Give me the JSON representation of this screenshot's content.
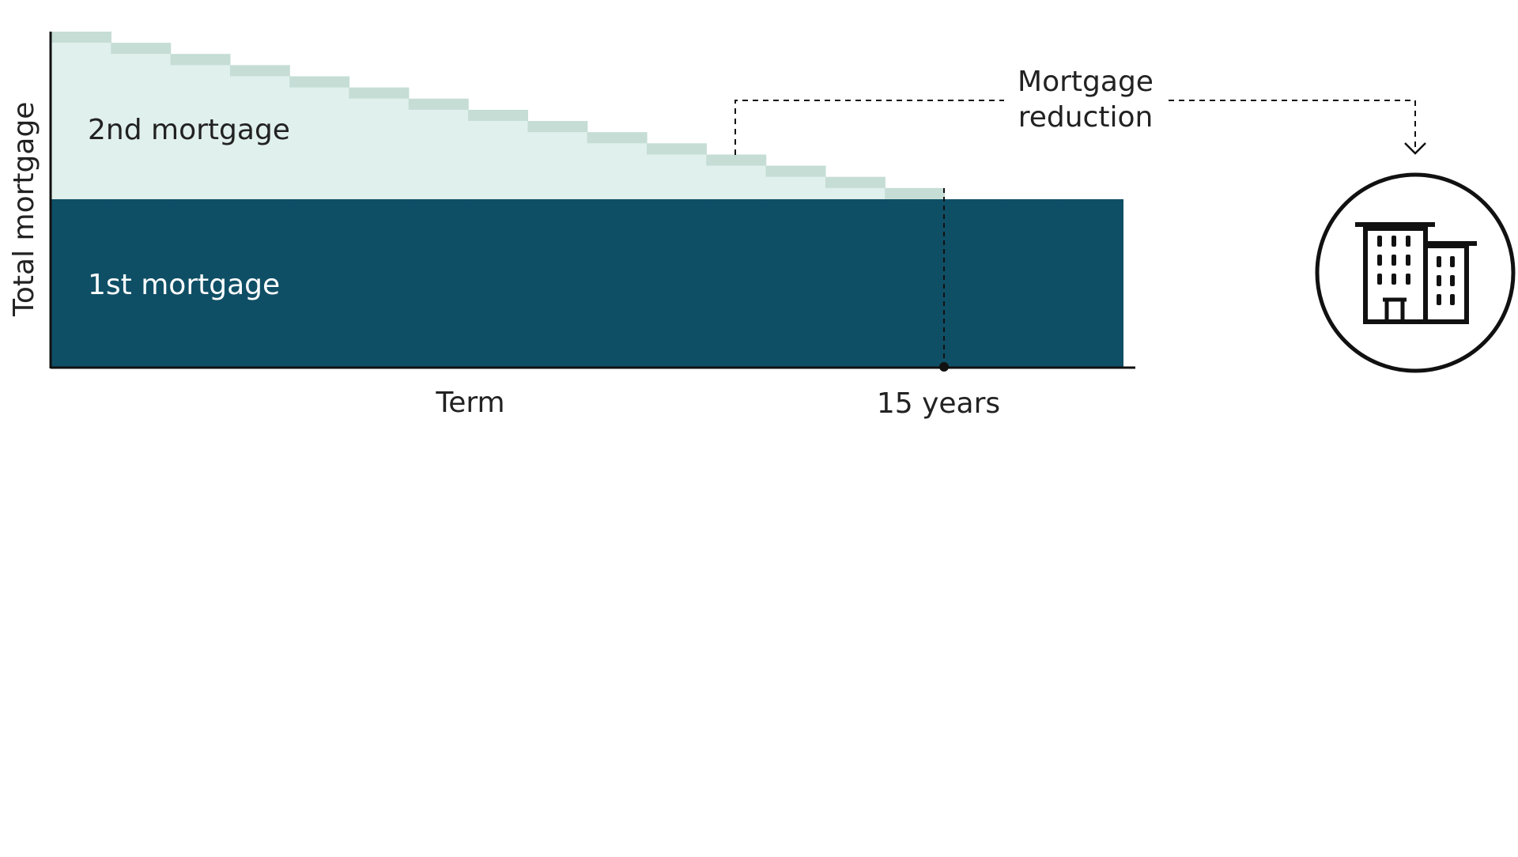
{
  "chart_data": {
    "type": "area",
    "title": "",
    "xlabel": "Term",
    "ylabel": "Total mortgage",
    "x_marker_label": "15 years",
    "series": [
      {
        "name": "1st mortgage",
        "values": [
          1,
          1,
          1,
          1,
          1,
          1,
          1,
          1,
          1,
          1,
          1,
          1,
          1,
          1,
          1,
          1,
          1,
          1
        ],
        "color": "#0f4f66"
      },
      {
        "name": "2nd mortgage",
        "values": [
          1,
          0.9333,
          0.8667,
          0.8,
          0.7333,
          0.6667,
          0.6,
          0.5333,
          0.4667,
          0.4,
          0.3333,
          0.2667,
          0.2,
          0.1333,
          0.0667,
          0,
          0,
          0
        ],
        "color": "#e0f0ec",
        "step_color": "#c5ddd5"
      }
    ],
    "x_years": [
      0,
      1,
      2,
      3,
      4,
      5,
      6,
      7,
      8,
      9,
      10,
      11,
      12,
      13,
      14,
      15,
      16,
      17
    ],
    "marker_year": 15,
    "annotation": {
      "label_line1": "Mortgage",
      "label_line2": "reduction",
      "target_icon": "office-building-icon"
    },
    "grid": false,
    "legend": "none"
  }
}
